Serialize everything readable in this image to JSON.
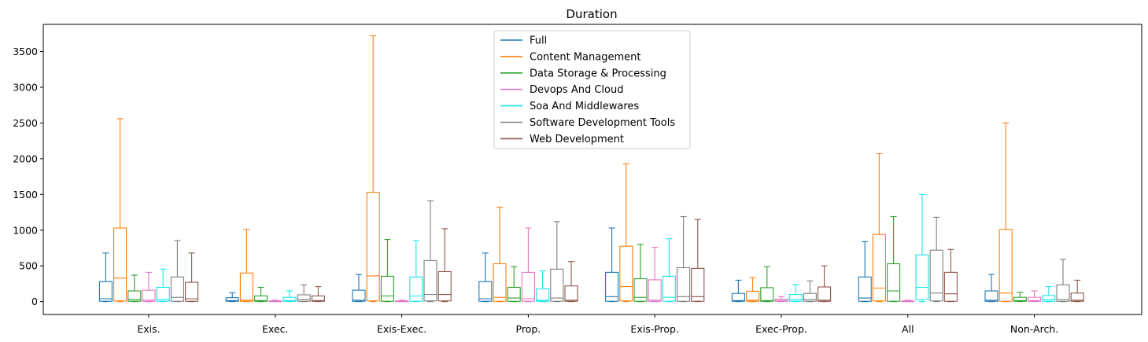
{
  "chart_data": {
    "type": "box",
    "title": "Duration",
    "xlabel": "",
    "ylabel": "",
    "ylim": [
      -180,
      3880
    ],
    "yticks": [
      0,
      500,
      1000,
      1500,
      2000,
      2500,
      3000,
      3500
    ],
    "ytick_labels": [
      "0",
      "500",
      "1000",
      "1500",
      "2000",
      "2500",
      "3000",
      "3500"
    ],
    "grid": false,
    "legend_position": "top-center",
    "categories": [
      "Exis.",
      "Exec.",
      "Exis-Exec.",
      "Prop.",
      "Exis-Prop.",
      "Exec-Prop.",
      "All",
      "Non-Arch."
    ],
    "series": [
      {
        "name": "Full",
        "color": "#1f77b4",
        "boxes": [
          {
            "lo": 0,
            "q1": 5,
            "med": 40,
            "q3": 280,
            "hi": 680
          },
          {
            "lo": 0,
            "q1": 5,
            "med": 15,
            "q3": 55,
            "hi": 125
          },
          {
            "lo": 0,
            "q1": 5,
            "med": 20,
            "q3": 160,
            "hi": 380
          },
          {
            "lo": 0,
            "q1": 5,
            "med": 40,
            "q3": 280,
            "hi": 680
          },
          {
            "lo": 0,
            "q1": 5,
            "med": 70,
            "q3": 410,
            "hi": 1030
          },
          {
            "lo": 0,
            "q1": 5,
            "med": 15,
            "q3": 115,
            "hi": 300
          },
          {
            "lo": 0,
            "q1": 5,
            "med": 50,
            "q3": 345,
            "hi": 840
          },
          {
            "lo": 0,
            "q1": 5,
            "med": 20,
            "q3": 150,
            "hi": 380
          }
        ]
      },
      {
        "name": "Content Management",
        "color": "#ff7f0e",
        "boxes": [
          {
            "lo": 0,
            "q1": 10,
            "med": 330,
            "q3": 1030,
            "hi": 2560
          },
          {
            "lo": 0,
            "q1": 5,
            "med": 20,
            "q3": 400,
            "hi": 1010
          },
          {
            "lo": 0,
            "q1": 10,
            "med": 360,
            "q3": 1530,
            "hi": 3720
          },
          {
            "lo": 0,
            "q1": 5,
            "med": 60,
            "q3": 530,
            "hi": 1320
          },
          {
            "lo": 0,
            "q1": 10,
            "med": 210,
            "q3": 775,
            "hi": 1930
          },
          {
            "lo": 0,
            "q1": 5,
            "med": 20,
            "q3": 145,
            "hi": 335
          },
          {
            "lo": 0,
            "q1": 10,
            "med": 190,
            "q3": 940,
            "hi": 2070
          },
          {
            "lo": 0,
            "q1": 5,
            "med": 120,
            "q3": 1010,
            "hi": 2500
          }
        ]
      },
      {
        "name": "Data Storage & Processing",
        "color": "#2ca02c",
        "boxes": [
          {
            "lo": 0,
            "q1": 5,
            "med": 30,
            "q3": 150,
            "hi": 370
          },
          {
            "lo": 0,
            "q1": 5,
            "med": 15,
            "q3": 80,
            "hi": 200
          },
          {
            "lo": 0,
            "q1": 5,
            "med": 80,
            "q3": 355,
            "hi": 870
          },
          {
            "lo": 0,
            "q1": 5,
            "med": 50,
            "q3": 200,
            "hi": 490
          },
          {
            "lo": 0,
            "q1": 5,
            "med": 60,
            "q3": 320,
            "hi": 800
          },
          {
            "lo": 0,
            "q1": 5,
            "med": 15,
            "q3": 195,
            "hi": 490
          },
          {
            "lo": 0,
            "q1": 5,
            "med": 150,
            "q3": 530,
            "hi": 1190
          },
          {
            "lo": 0,
            "q1": 5,
            "med": 15,
            "q3": 60,
            "hi": 130
          }
        ]
      },
      {
        "name": "Devops And Cloud",
        "color": "#e377c2",
        "boxes": [
          {
            "lo": 0,
            "q1": 5,
            "med": 20,
            "q3": 160,
            "hi": 410
          },
          {
            "lo": 0,
            "q1": 0,
            "med": 5,
            "q3": 10,
            "hi": 20
          },
          {
            "lo": 0,
            "q1": 0,
            "med": 5,
            "q3": 10,
            "hi": 20
          },
          {
            "lo": 0,
            "q1": 5,
            "med": 40,
            "q3": 410,
            "hi": 1030
          },
          {
            "lo": 0,
            "q1": 5,
            "med": 20,
            "q3": 305,
            "hi": 760
          },
          {
            "lo": 0,
            "q1": 5,
            "med": 15,
            "q3": 35,
            "hi": 70
          },
          {
            "lo": 0,
            "q1": 0,
            "med": 5,
            "q3": 10,
            "hi": 20
          },
          {
            "lo": 0,
            "q1": 5,
            "med": 15,
            "q3": 60,
            "hi": 150
          }
        ]
      },
      {
        "name": "Soa And Middlewares",
        "color": "#17e8e8",
        "boxes": [
          {
            "lo": 0,
            "q1": 5,
            "med": 30,
            "q3": 200,
            "hi": 455
          },
          {
            "lo": 0,
            "q1": 5,
            "med": 15,
            "q3": 60,
            "hi": 150
          },
          {
            "lo": 0,
            "q1": 5,
            "med": 80,
            "q3": 345,
            "hi": 855
          },
          {
            "lo": 0,
            "q1": 5,
            "med": 20,
            "q3": 180,
            "hi": 430
          },
          {
            "lo": 0,
            "q1": 5,
            "med": 60,
            "q3": 355,
            "hi": 880
          },
          {
            "lo": 0,
            "q1": 5,
            "med": 30,
            "q3": 100,
            "hi": 240
          },
          {
            "lo": 0,
            "q1": 30,
            "med": 200,
            "q3": 655,
            "hi": 1500
          },
          {
            "lo": 0,
            "q1": 5,
            "med": 30,
            "q3": 85,
            "hi": 210
          }
        ]
      },
      {
        "name": "Software Development Tools",
        "color": "#7f7f7f",
        "boxes": [
          {
            "lo": 0,
            "q1": 5,
            "med": 60,
            "q3": 345,
            "hi": 855
          },
          {
            "lo": 0,
            "q1": 5,
            "med": 30,
            "q3": 95,
            "hi": 235
          },
          {
            "lo": 0,
            "q1": 10,
            "med": 100,
            "q3": 575,
            "hi": 1410
          },
          {
            "lo": 0,
            "q1": 5,
            "med": 50,
            "q3": 455,
            "hi": 1120
          },
          {
            "lo": 0,
            "q1": 5,
            "med": 70,
            "q3": 475,
            "hi": 1190
          },
          {
            "lo": 0,
            "q1": 5,
            "med": 30,
            "q3": 115,
            "hi": 290
          },
          {
            "lo": 0,
            "q1": 10,
            "med": 120,
            "q3": 720,
            "hi": 1180
          },
          {
            "lo": 0,
            "q1": 5,
            "med": 30,
            "q3": 235,
            "hi": 590
          }
        ]
      },
      {
        "name": "Web Development",
        "color": "#8c564b",
        "boxes": [
          {
            "lo": 0,
            "q1": 5,
            "med": 40,
            "q3": 270,
            "hi": 680
          },
          {
            "lo": 0,
            "q1": 5,
            "med": 15,
            "q3": 80,
            "hi": 210
          },
          {
            "lo": 0,
            "q1": 10,
            "med": 100,
            "q3": 420,
            "hi": 1020
          },
          {
            "lo": 0,
            "q1": 5,
            "med": 20,
            "q3": 220,
            "hi": 560
          },
          {
            "lo": 0,
            "q1": 5,
            "med": 70,
            "q3": 465,
            "hi": 1150
          },
          {
            "lo": 0,
            "q1": 5,
            "med": 20,
            "q3": 205,
            "hi": 500
          },
          {
            "lo": 0,
            "q1": 5,
            "med": 110,
            "q3": 410,
            "hi": 730
          },
          {
            "lo": 0,
            "q1": 5,
            "med": 20,
            "q3": 120,
            "hi": 300
          }
        ]
      }
    ]
  }
}
